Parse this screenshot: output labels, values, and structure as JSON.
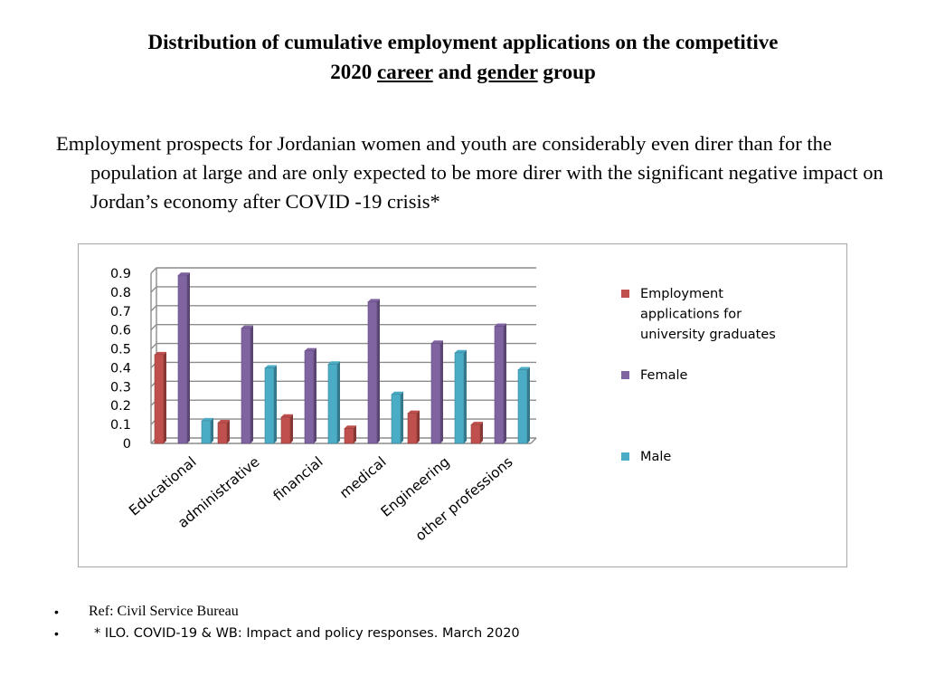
{
  "title": {
    "line1": "Distribution of cumulative employment applications on the competitive",
    "year": "2020",
    "word_career": "career",
    "word_and": "and",
    "word_gender": "gender",
    "word_group": "group"
  },
  "intro": "Employment prospects for Jordanian women and youth are considerably even direr than for the population at large and are only expected to be more direr with the significant negative impact on Jordan’s economy after COVID -19 crisis*",
  "references": [
    {
      "bullet": "•",
      "text": "Ref:  Civil Service Bureau"
    },
    {
      "bullet": "•",
      "text": "* ILO. COVID-19 & WB: Impact and policy responses. March 2020"
    }
  ],
  "chart_data": {
    "type": "bar",
    "categories": [
      "Educational",
      "administrative",
      "financial",
      "medical",
      "Engineering",
      "other professions"
    ],
    "series": [
      {
        "name": "Employment applications for university graduates",
        "legend_lines": [
          "Employment",
          "applications for",
          "university graduates"
        ],
        "color": "#c0504d",
        "values": [
          0.47,
          0.11,
          0.14,
          0.08,
          0.16,
          0.1
        ]
      },
      {
        "name": "Female",
        "legend_lines": [
          "Female"
        ],
        "color": "#8064a2",
        "values": [
          0.89,
          0.61,
          0.49,
          0.75,
          0.53,
          0.62
        ]
      },
      {
        "name": "Male",
        "legend_lines": [
          "Male"
        ],
        "color": "#4bacc6",
        "values": [
          0.12,
          0.4,
          0.42,
          0.26,
          0.48,
          0.39
        ]
      }
    ],
    "yticks": [
      "0",
      "0.1",
      "0.2",
      "0.3",
      "0.4",
      "0.5",
      "0.6",
      "0.7",
      "0.8",
      "0.9"
    ],
    "ylim": [
      0,
      0.9
    ],
    "grid": true,
    "legend_position": "right"
  }
}
